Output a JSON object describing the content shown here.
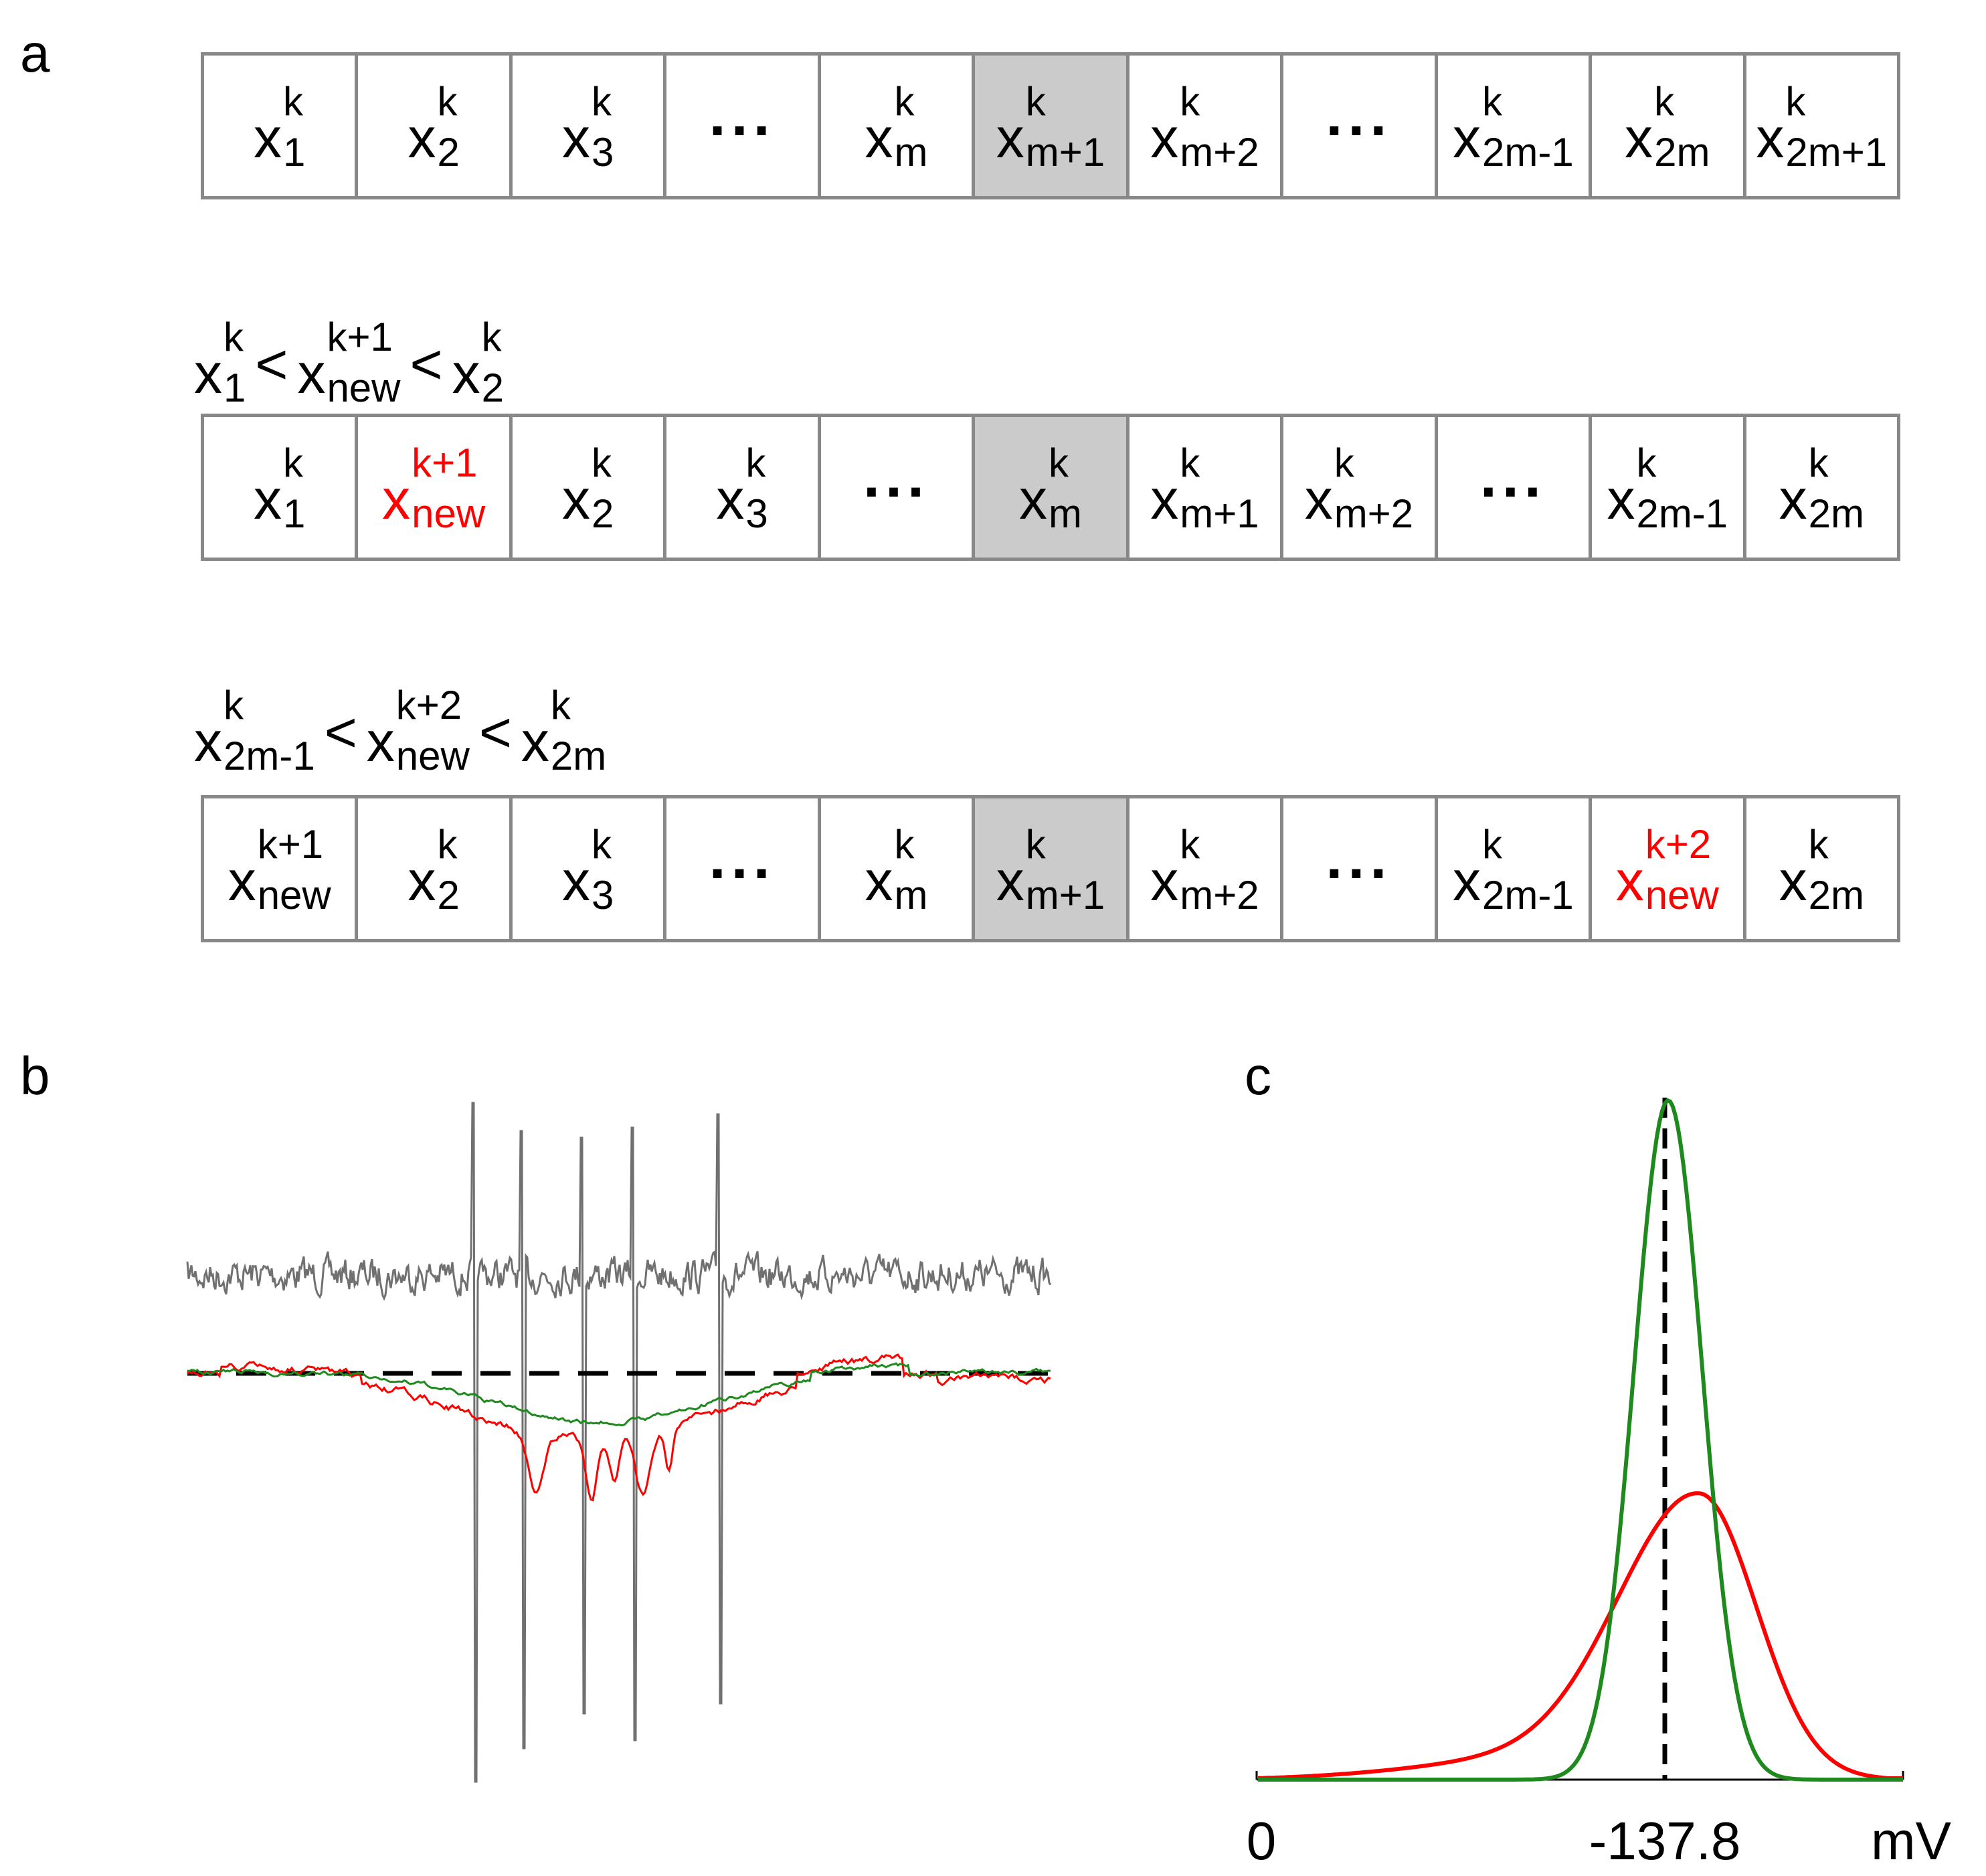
{
  "panels": {
    "a": "a",
    "b": "b",
    "c": "c"
  },
  "panel_a": {
    "rows": [
      {
        "condition": null,
        "cells": [
          {
            "base": "x",
            "sup": "k",
            "sub": "1"
          },
          {
            "base": "x",
            "sup": "k",
            "sub": "2"
          },
          {
            "base": "x",
            "sup": "k",
            "sub": "3"
          },
          {
            "dots": "..."
          },
          {
            "base": "x",
            "sup": "k",
            "sub": "m"
          },
          {
            "base": "x",
            "sup": "k",
            "sub": "m+1",
            "highlight": true
          },
          {
            "base": "x",
            "sup": "k",
            "sub": "m+2"
          },
          {
            "dots": "..."
          },
          {
            "base": "x",
            "sup": "k",
            "sub": "2m-1"
          },
          {
            "base": "x",
            "sup": "k",
            "sub": "2m"
          },
          {
            "base": "x",
            "sup": "k",
            "sub": "2m+1"
          }
        ]
      },
      {
        "condition": {
          "left": {
            "base": "x",
            "sup": "k",
            "sub": "1"
          },
          "op1": "<",
          "mid": {
            "base": "x",
            "sup": "k+1",
            "sub": "new"
          },
          "op2": "<",
          "right": {
            "base": "x",
            "sup": "k",
            "sub": "2"
          }
        },
        "cells": [
          {
            "base": "x",
            "sup": "k",
            "sub": "1"
          },
          {
            "base": "x",
            "sup": "k+1",
            "sub": "new",
            "red": true
          },
          {
            "base": "x",
            "sup": "k",
            "sub": "2"
          },
          {
            "base": "x",
            "sup": "k",
            "sub": "3"
          },
          {
            "dots": "..."
          },
          {
            "base": "x",
            "sup": "k",
            "sub": "m",
            "highlight": true
          },
          {
            "base": "x",
            "sup": "k",
            "sub": "m+1"
          },
          {
            "base": "x",
            "sup": "k",
            "sub": "m+2"
          },
          {
            "dots": "..."
          },
          {
            "base": "x",
            "sup": "k",
            "sub": "2m-1"
          },
          {
            "base": "x",
            "sup": "k",
            "sub": "2m"
          }
        ]
      },
      {
        "condition": {
          "left": {
            "base": "x",
            "sup": "k",
            "sub": "2m-1"
          },
          "op1": "<",
          "mid": {
            "base": "x",
            "sup": "k+2",
            "sub": "new"
          },
          "op2": "<",
          "right": {
            "base": "x",
            "sup": "k",
            "sub": "2m"
          }
        },
        "cells": [
          {
            "base": "x",
            "sup": "k+1",
            "sub": "new"
          },
          {
            "base": "x",
            "sup": "k",
            "sub": "2"
          },
          {
            "base": "x",
            "sup": "k",
            "sub": "3"
          },
          {
            "dots": "..."
          },
          {
            "base": "x",
            "sup": "k",
            "sub": "m"
          },
          {
            "base": "x",
            "sup": "k",
            "sub": "m+1",
            "highlight": true
          },
          {
            "base": "x",
            "sup": "k",
            "sub": "m+2"
          },
          {
            "dots": "..."
          },
          {
            "base": "x",
            "sup": "k",
            "sub": "2m-1"
          },
          {
            "base": "x",
            "sup": "k+2",
            "sub": "new",
            "red": true
          },
          {
            "base": "x",
            "sup": "k",
            "sub": "2m"
          }
        ]
      }
    ]
  },
  "panel_c": {
    "tick_labels": [
      "0",
      "-137.8"
    ],
    "unit": "mV"
  },
  "colors": {
    "grid_border": "#888888",
    "highlight_cell": "#cbcbcb",
    "new_element": "#ff0000",
    "raw_trace": "#707070",
    "red_trace": "#ff0000",
    "green_trace": "#1e8a1e"
  }
}
